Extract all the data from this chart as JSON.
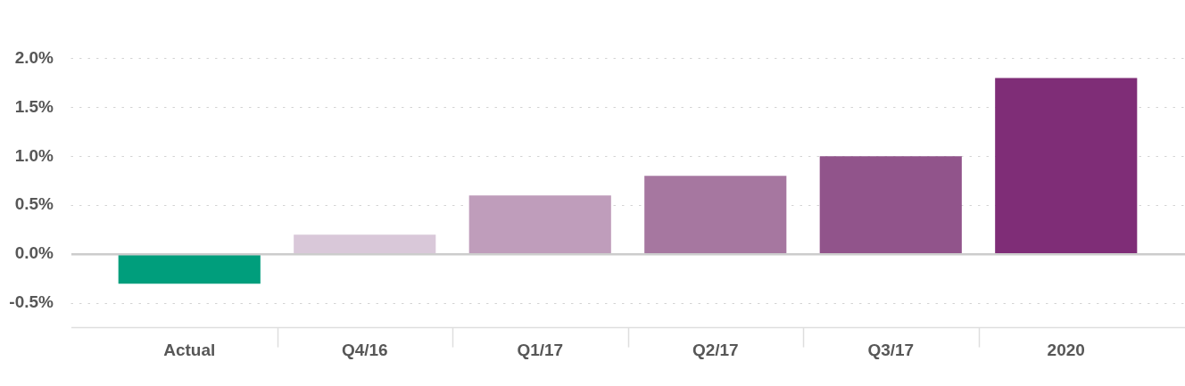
{
  "chart_data": {
    "type": "bar",
    "categories": [
      "Actual",
      "Q4/16",
      "Q1/17",
      "Q2/17",
      "Q3/17",
      "2020"
    ],
    "values": [
      -0.3,
      0.2,
      0.6,
      0.8,
      1.0,
      1.8
    ],
    "colors": [
      "#009e7c",
      "#d9c8d9",
      "#bf9dbb",
      "#a677a0",
      "#91548b",
      "#7f2d77"
    ],
    "ylim": [
      -0.75,
      2.0
    ],
    "yticks": [
      {
        "value": -0.5,
        "label": "-0.5%"
      },
      {
        "value": 0,
        "label": "0.0%"
      },
      {
        "value": 0.5,
        "label": "0.5%"
      },
      {
        "value": 1.0,
        "label": "1.0%"
      },
      {
        "value": 1.5,
        "label": "1.5%"
      },
      {
        "value": 2.0,
        "label": "2.0%"
      }
    ],
    "grid": "y"
  }
}
